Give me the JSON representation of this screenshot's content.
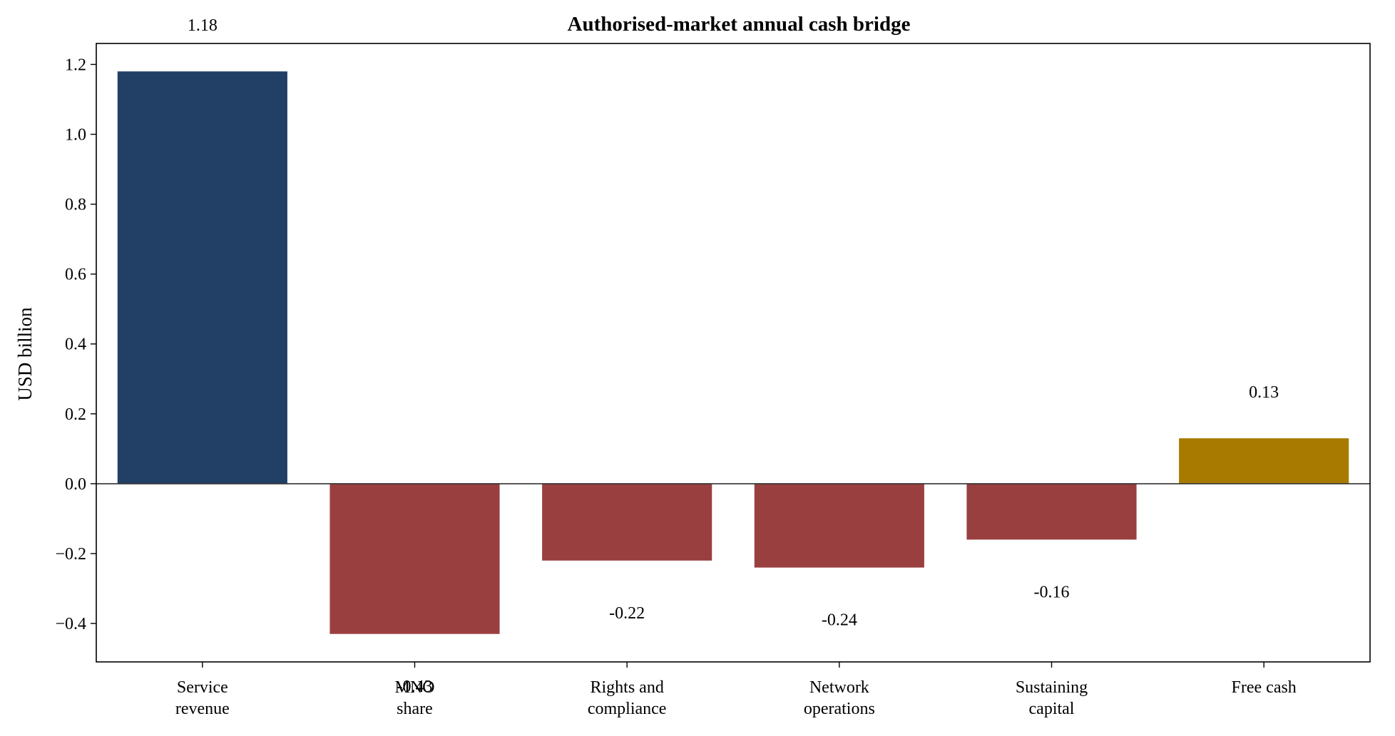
{
  "colors": {
    "title": "#213f66",
    "positive": "#223f66",
    "negative": "#9a3f40",
    "total": "#a87b00",
    "axis": "#000000",
    "zero_line": "#333333"
  },
  "chart_data": {
    "type": "bar",
    "title": "Authorised-market annual cash bridge",
    "xlabel": "",
    "ylabel": "USD billion",
    "ylim": [
      -0.51,
      1.26
    ],
    "grid": false,
    "categories": [
      [
        "Service",
        "revenue"
      ],
      [
        "MNO",
        "share"
      ],
      [
        "Rights and",
        "compliance"
      ],
      [
        "Network",
        "operations"
      ],
      [
        "Sustaining",
        "capital"
      ],
      [
        "Free cash"
      ]
    ],
    "values": [
      1.18,
      -0.43,
      -0.22,
      -0.24,
      -0.16,
      0.13
    ],
    "value_labels": [
      "1.18",
      "-0.43",
      "-0.22",
      "-0.24",
      "-0.16",
      "0.13"
    ],
    "bar_kinds": [
      "positive",
      "negative",
      "negative",
      "negative",
      "negative",
      "total"
    ],
    "yticks": [
      -0.4,
      -0.2,
      0.0,
      0.2,
      0.4,
      0.6,
      0.8,
      1.0,
      1.2
    ],
    "ytick_labels": [
      "−0.4",
      "−0.2",
      "0.0",
      "0.2",
      "0.4",
      "0.6",
      "0.8",
      "1.0",
      "1.2"
    ]
  }
}
